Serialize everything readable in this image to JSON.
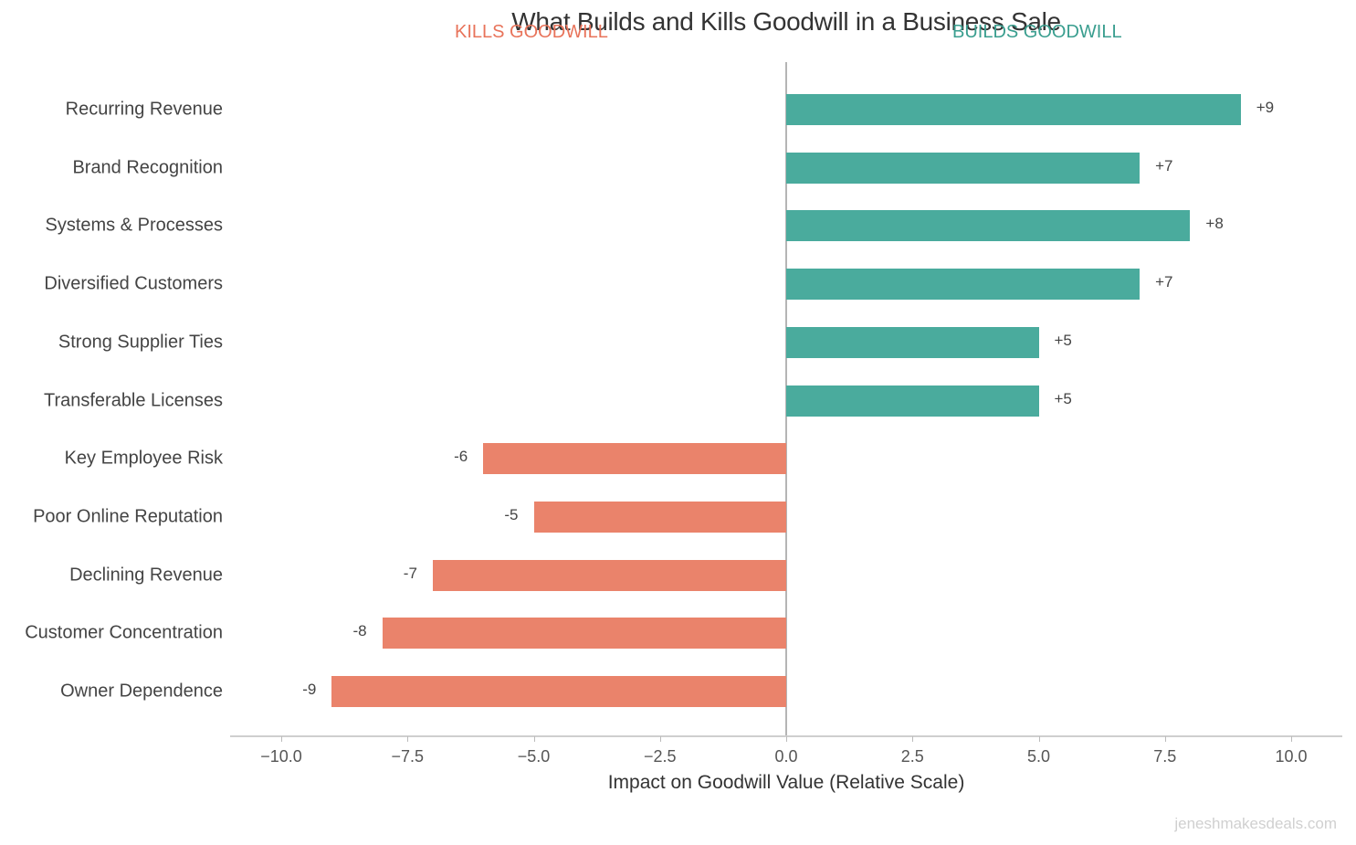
{
  "chart_data": {
    "type": "bar",
    "orientation": "horizontal",
    "title": "What Builds and Kills Goodwill in a Business Sale",
    "xlabel": "Impact on Goodwill Value (Relative Scale)",
    "ylabel": "",
    "xlim": [
      -11,
      11
    ],
    "xticks": [
      -10.0,
      -7.5,
      -5.0,
      -2.5,
      0.0,
      2.5,
      5.0,
      7.5,
      10.0
    ],
    "xtick_labels": [
      "−10.0",
      "−7.5",
      "−5.0",
      "−2.5",
      "0.0",
      "2.5",
      "5.0",
      "7.5",
      "10.0"
    ],
    "categories": [
      "Recurring Revenue",
      "Brand Recognition",
      "Systems & Processes",
      "Diversified Customers",
      "Strong Supplier Ties",
      "Transferable Licenses",
      "Key Employee Risk",
      "Poor Online Reputation",
      "Declining Revenue",
      "Customer Concentration",
      "Owner Dependence"
    ],
    "values": [
      9,
      7,
      8,
      7,
      5,
      5,
      -6,
      -5,
      -7,
      -8,
      -9
    ],
    "value_labels": [
      "+9",
      "+7",
      "+8",
      "+7",
      "+5",
      "+5",
      "-6",
      "-5",
      "-7",
      "-8",
      "-9"
    ],
    "annotations": [
      {
        "text": "KILLS GOODWILL",
        "color": "#e8735a"
      },
      {
        "text": "BUILDS GOODWILL",
        "color": "#3a9e8f"
      }
    ],
    "colors": {
      "positive": "#4aab9d",
      "negative": "#ea836b"
    },
    "grid": false,
    "legend": null
  },
  "watermark": "jeneshmakesdeals.com"
}
